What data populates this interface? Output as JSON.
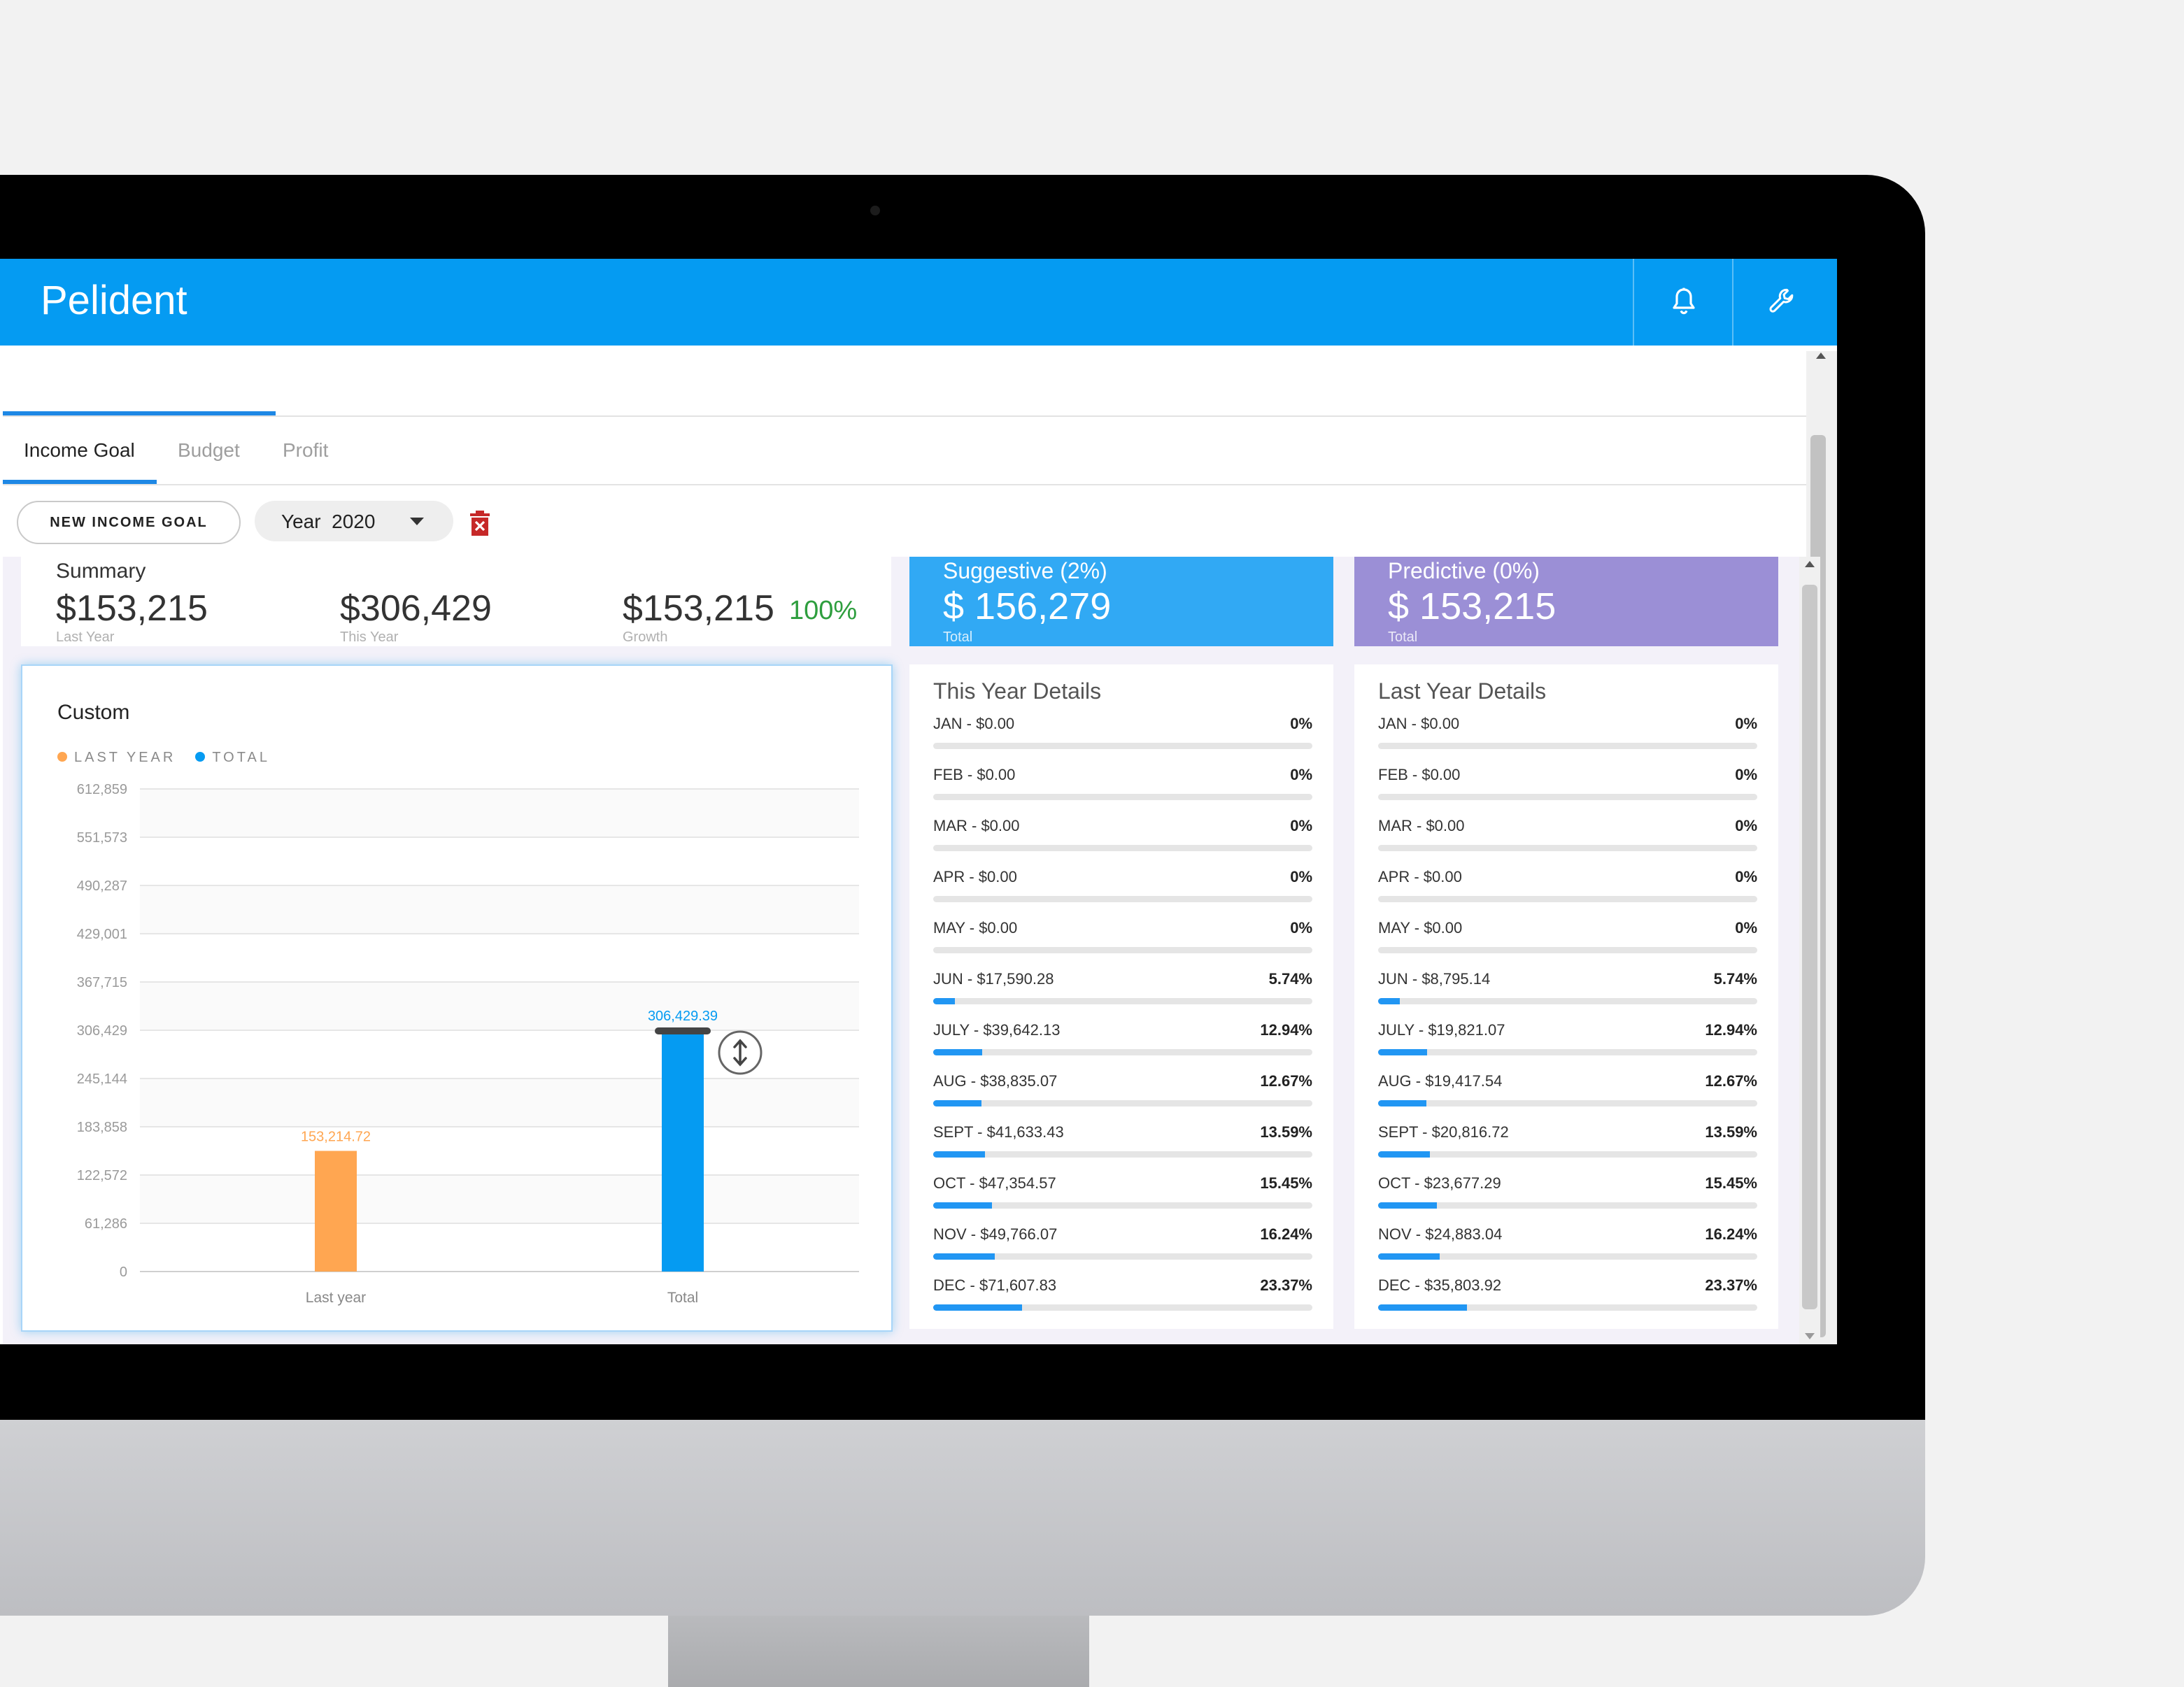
{
  "app": {
    "title": "Pelident"
  },
  "appbar_actions": [
    {
      "icon": "bell-icon"
    },
    {
      "icon": "wrench-icon"
    }
  ],
  "tabs": [
    {
      "label": "Income Goal",
      "active": true
    },
    {
      "label": "Budget",
      "active": false
    },
    {
      "label": "Profit",
      "active": false
    }
  ],
  "toolbar": {
    "new_goal_label": "NEW INCOME GOAL",
    "year_label": "Year",
    "year_value": "2020",
    "delete_icon": "trash-icon"
  },
  "summary": {
    "title": "Summary",
    "last_year_value": "$153,215",
    "last_year_label": "Last Year",
    "this_year_value": "$306,429",
    "this_year_label": "This Year",
    "growth_value": "$153,215",
    "growth_pct": "100%",
    "growth_label": "Growth"
  },
  "suggestive": {
    "title": "Suggestive (2%)",
    "value": "$ 156,279",
    "label": "Total",
    "color": "#31a9f4"
  },
  "predictive": {
    "title": "Predictive (0%)",
    "value": "$ 153,215",
    "label": "Total",
    "color": "#9b8fd6"
  },
  "colors": {
    "accent": "#059bf2",
    "last_year": "#ffa651",
    "total": "#059bf2",
    "progress": "#2196f3",
    "growth": "#2e9e3e"
  },
  "chart_data": {
    "type": "bar",
    "title": "Custom",
    "legend": [
      {
        "name": "LAST YEAR",
        "color": "#ffa651"
      },
      {
        "name": "TOTAL",
        "color": "#059bf2"
      }
    ],
    "categories": [
      "Last year",
      "Total"
    ],
    "values": [
      153214.72,
      306429.39
    ],
    "data_labels": [
      "153,214.72",
      "306,429.39"
    ],
    "bar_colors": [
      "#ffa651",
      "#059bf2"
    ],
    "y_ticks": [
      0,
      61286,
      122572,
      183858,
      245144,
      306429,
      367715,
      429001,
      490287,
      551573,
      612859
    ],
    "y_tick_labels": [
      "0",
      "61,286",
      "122,572",
      "183,858",
      "245,144",
      "306,429",
      "367,715",
      "429,001",
      "490,287",
      "551,573",
      "612,859"
    ],
    "ylim": [
      0,
      612859
    ],
    "grid": true,
    "legend_position": "top-left",
    "drag_handle_icon": "resize-vertical-icon"
  },
  "this_year_details": {
    "title": "This Year Details",
    "rows": [
      {
        "label": "JAN - $0.00",
        "pct": "0%",
        "fraction": 0
      },
      {
        "label": "FEB - $0.00",
        "pct": "0%",
        "fraction": 0
      },
      {
        "label": "MAR - $0.00",
        "pct": "0%",
        "fraction": 0
      },
      {
        "label": "APR - $0.00",
        "pct": "0%",
        "fraction": 0
      },
      {
        "label": "MAY - $0.00",
        "pct": "0%",
        "fraction": 0
      },
      {
        "label": "JUN - $17,590.28",
        "pct": "5.74%",
        "fraction": 0.0574
      },
      {
        "label": "JULY - $39,642.13",
        "pct": "12.94%",
        "fraction": 0.1294
      },
      {
        "label": "AUG - $38,835.07",
        "pct": "12.67%",
        "fraction": 0.1267
      },
      {
        "label": "SEPT - $41,633.43",
        "pct": "13.59%",
        "fraction": 0.1359
      },
      {
        "label": "OCT - $47,354.57",
        "pct": "15.45%",
        "fraction": 0.1545
      },
      {
        "label": "NOV - $49,766.07",
        "pct": "16.24%",
        "fraction": 0.1624
      },
      {
        "label": "DEC - $71,607.83",
        "pct": "23.37%",
        "fraction": 0.2337
      }
    ]
  },
  "last_year_details": {
    "title": "Last Year Details",
    "rows": [
      {
        "label": "JAN - $0.00",
        "pct": "0%",
        "fraction": 0
      },
      {
        "label": "FEB - $0.00",
        "pct": "0%",
        "fraction": 0
      },
      {
        "label": "MAR - $0.00",
        "pct": "0%",
        "fraction": 0
      },
      {
        "label": "APR - $0.00",
        "pct": "0%",
        "fraction": 0
      },
      {
        "label": "MAY - $0.00",
        "pct": "0%",
        "fraction": 0
      },
      {
        "label": "JUN - $8,795.14",
        "pct": "5.74%",
        "fraction": 0.0574
      },
      {
        "label": "JULY - $19,821.07",
        "pct": "12.94%",
        "fraction": 0.1294
      },
      {
        "label": "AUG - $19,417.54",
        "pct": "12.67%",
        "fraction": 0.1267
      },
      {
        "label": "SEPT - $20,816.72",
        "pct": "13.59%",
        "fraction": 0.1359
      },
      {
        "label": "OCT - $23,677.29",
        "pct": "15.45%",
        "fraction": 0.1545
      },
      {
        "label": "NOV - $24,883.04",
        "pct": "16.24%",
        "fraction": 0.1624
      },
      {
        "label": "DEC - $35,803.92",
        "pct": "23.37%",
        "fraction": 0.2337
      }
    ]
  }
}
